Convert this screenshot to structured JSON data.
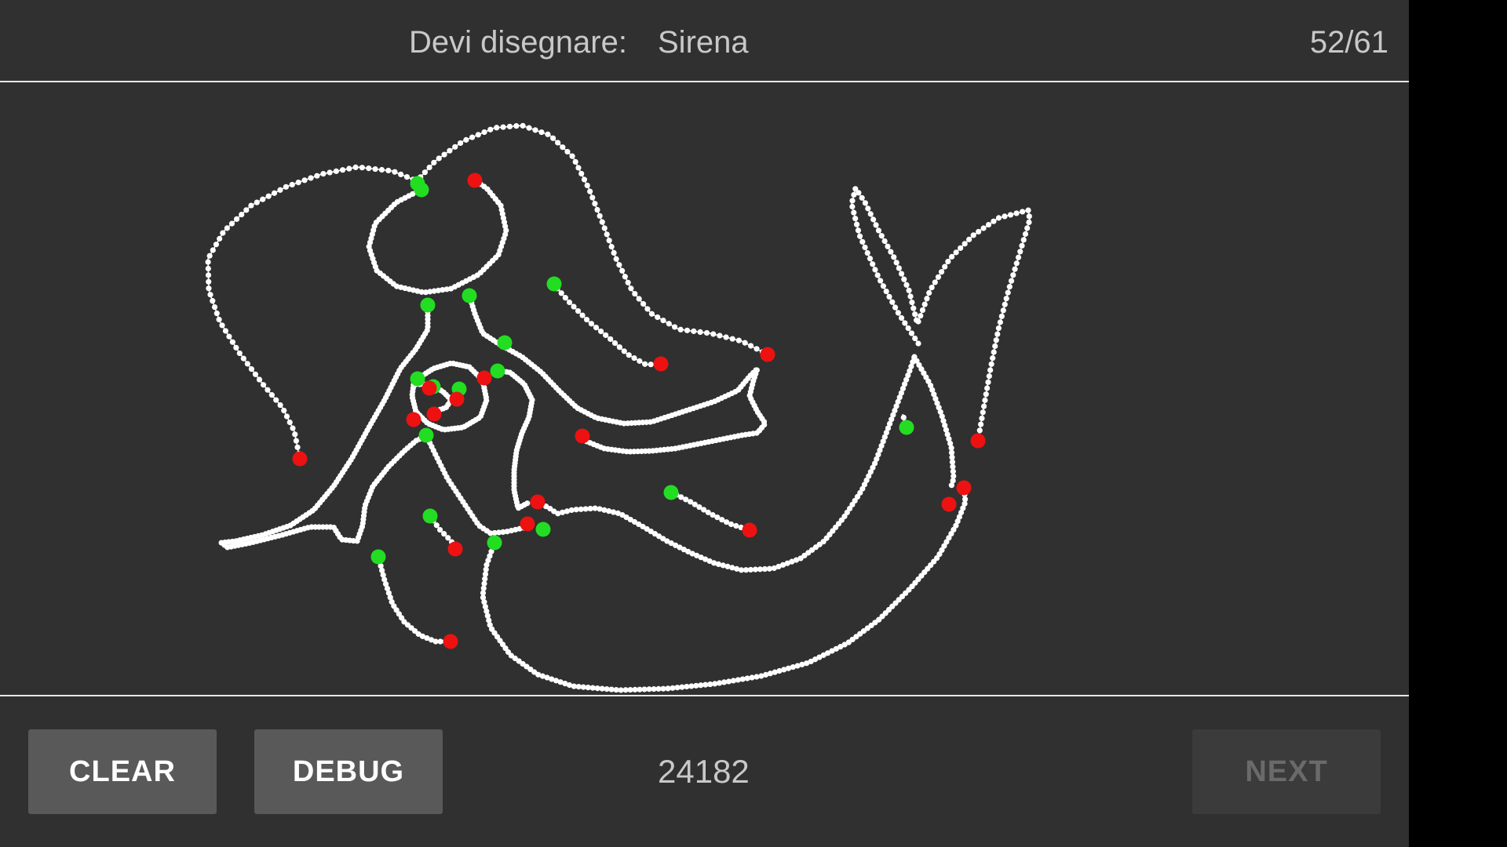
{
  "header": {
    "prompt_label": "Devi disegnare:",
    "prompt_word": "Sirena",
    "counter": "52/61"
  },
  "toolbar": {
    "clear_label": "CLEAR",
    "debug_label": "DEBUG",
    "score": "24182",
    "next_label": "NEXT"
  },
  "drawing": {
    "colors": {
      "stroke_dots": "#ffffff",
      "stroke_start": "#22dd22",
      "stroke_end": "#ee1111"
    }
  }
}
